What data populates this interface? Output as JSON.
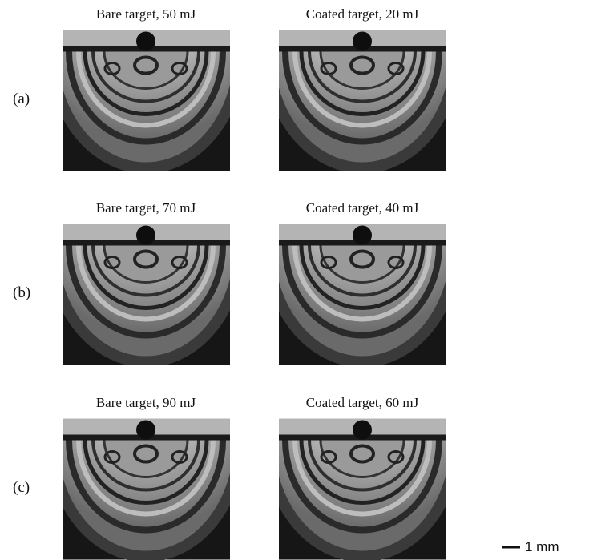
{
  "rows": [
    {
      "label": "(a)",
      "panels": [
        {
          "title": "Bare target, 50 mJ"
        },
        {
          "title": "Coated target, 20 mJ"
        }
      ]
    },
    {
      "label": "(b)",
      "panels": [
        {
          "title": "Bare target, 70 mJ"
        },
        {
          "title": "Coated target, 40 mJ"
        }
      ]
    },
    {
      "label": "(c)",
      "panels": [
        {
          "title": "Bare target, 90 mJ"
        },
        {
          "title": "Coated target, 60 mJ"
        }
      ]
    }
  ],
  "scale_bar": {
    "label": "1 mm"
  }
}
